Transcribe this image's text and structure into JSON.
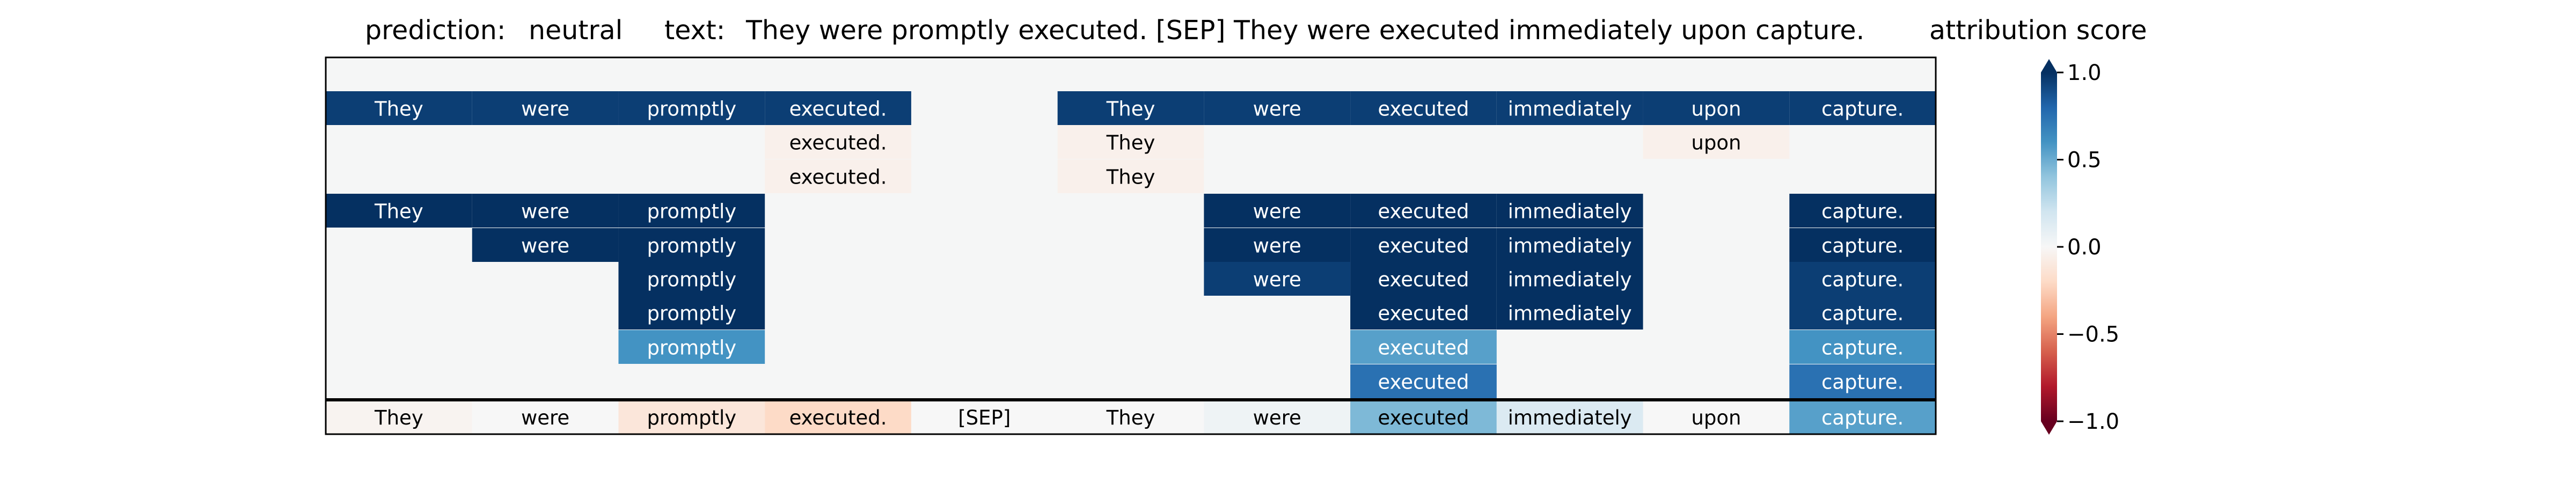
{
  "header": {
    "prediction_label": "prediction:",
    "prediction_value": "neutral",
    "text_label": "text:",
    "text_value": "They were promptly executed. [SEP] They were executed immediately upon capture.",
    "colorbar_title": "attribution score"
  },
  "colors": {
    "sep_line": "#000000",
    "cell_empty": "#f5f6f6",
    "colormap": "RdBu"
  },
  "chart_data": {
    "type": "heatmap",
    "tokens": [
      "They",
      "were",
      "promptly",
      "executed.",
      "[SEP]",
      "They",
      "were",
      "executed",
      "immediately",
      "upon",
      "capture."
    ],
    "explanation_rows": [
      [
        0.95,
        0.95,
        0.95,
        0.95,
        null,
        0.95,
        0.95,
        0.95,
        0.95,
        0.95,
        0.95
      ],
      [
        null,
        null,
        null,
        -0.05,
        null,
        -0.05,
        null,
        null,
        null,
        -0.05,
        null
      ],
      [
        null,
        null,
        null,
        -0.05,
        null,
        -0.05,
        null,
        null,
        null,
        null,
        null
      ],
      [
        1.0,
        1.0,
        1.0,
        null,
        null,
        null,
        1.0,
        1.0,
        1.0,
        null,
        1.0
      ],
      [
        null,
        1.0,
        1.0,
        null,
        null,
        null,
        1.0,
        1.0,
        1.0,
        null,
        1.0
      ],
      [
        null,
        null,
        1.0,
        null,
        null,
        null,
        0.95,
        1.0,
        1.0,
        null,
        0.95
      ],
      [
        null,
        null,
        1.0,
        null,
        null,
        null,
        null,
        1.0,
        1.0,
        null,
        0.95
      ],
      [
        null,
        null,
        0.6,
        null,
        null,
        null,
        null,
        0.55,
        null,
        null,
        0.6
      ],
      [
        null,
        null,
        null,
        null,
        null,
        null,
        null,
        0.75,
        null,
        null,
        0.75
      ]
    ],
    "attribution_row": [
      -0.03,
      0.0,
      -0.12,
      -0.2,
      0.0,
      0.0,
      0.05,
      0.45,
      0.15,
      0.0,
      0.55
    ],
    "colorbar": {
      "range": [
        -1.0,
        1.0
      ],
      "ticks": [
        "1.0",
        "0.5",
        "0.0",
        "−0.5",
        "−1.0"
      ],
      "tick_values": [
        1.0,
        0.5,
        0.0,
        -0.5,
        -1.0
      ]
    }
  }
}
